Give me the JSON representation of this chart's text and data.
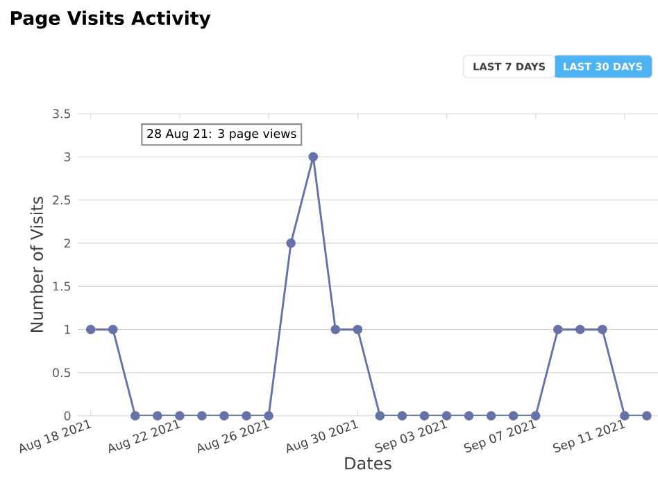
{
  "chart_data": {
    "type": "line",
    "title": "Page Visits Activity",
    "xlabel": "Dates",
    "ylabel": "Number of Visits",
    "annotations": [
      {
        "text": "28 Aug 21: 3 page views",
        "x": "2021-08-28",
        "y": 3
      },
      "LAST 7 DAYS",
      "LAST 30 DAYS"
    ],
    "x": [
      "2021-08-18",
      "2021-08-19",
      "2021-08-20",
      "2021-08-21",
      "2021-08-22",
      "2021-08-23",
      "2021-08-24",
      "2021-08-25",
      "2021-08-26",
      "2021-08-27",
      "2021-08-28",
      "2021-08-29",
      "2021-08-30",
      "2021-08-31",
      "2021-09-01",
      "2021-09-02",
      "2021-09-03",
      "2021-09-04",
      "2021-09-05",
      "2021-09-06",
      "2021-09-07",
      "2021-09-08",
      "2021-09-09",
      "2021-09-10",
      "2021-09-11",
      "2021-09-12"
    ],
    "series": [
      {
        "color": "#6673a8",
        "values": [
          1,
          1,
          0,
          0,
          0,
          0,
          0,
          0,
          0,
          2,
          3,
          1,
          1,
          0,
          0,
          0,
          0,
          0,
          0,
          0,
          0,
          1,
          1,
          1,
          0,
          0
        ]
      }
    ],
    "xlim": [
      "2021-08-17T10:00",
      "2021-09-12T12:00"
    ],
    "xticks": [
      {
        "value": "2021-08-18",
        "label": "Aug 18 2021"
      },
      {
        "value": "2021-08-22",
        "label": "Aug 22 2021"
      },
      {
        "value": "2021-08-26",
        "label": "Aug 26 2021"
      },
      {
        "value": "2021-08-30",
        "label": "Aug 30 2021"
      },
      {
        "value": "2021-09-03",
        "label": "Sep 03 2021"
      },
      {
        "value": "2021-09-07",
        "label": "Sep 07 2021"
      },
      {
        "value": "2021-09-11",
        "label": "Sep 11 2021"
      }
    ],
    "ylim": [
      0,
      3.5
    ],
    "yticks": [
      0,
      0.5,
      1,
      1.5,
      2,
      2.5,
      3,
      3.5
    ],
    "grid": "y",
    "marker": "circle",
    "line_style": "solid"
  }
}
